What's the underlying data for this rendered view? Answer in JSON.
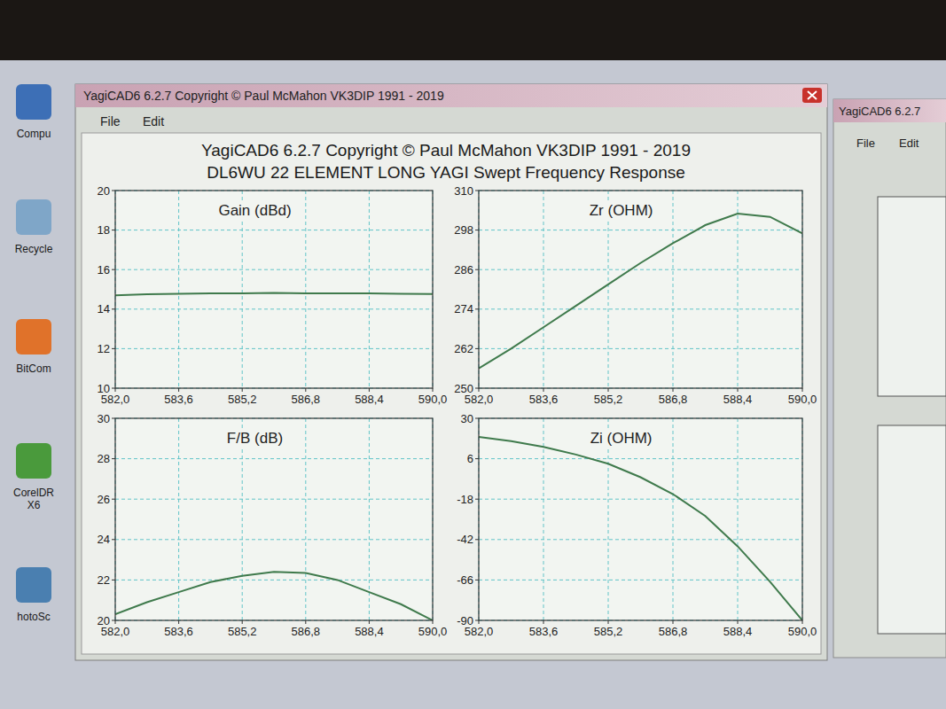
{
  "window": {
    "title": "YagiCAD6 6.2.7  Copyright © Paul McMahon VK3DIP 1991 - 2019",
    "menu": [
      "File",
      "Edit"
    ]
  },
  "heading": {
    "line1": "YagiCAD6 6.2.7  Copyright © Paul McMahon VK3DIP 1991 - 2019",
    "line2": "DL6WU 22 ELEMENT LONG YAGI Swept Frequency Response"
  },
  "background_window": {
    "title": "YagiCAD6 6.2.7",
    "menu": [
      "File",
      "Edit"
    ]
  },
  "desktop_icons": [
    "Compu",
    "Recycle",
    "BitCom",
    "CorelDR X6",
    "hotoSc"
  ],
  "chart_data": [
    {
      "type": "line",
      "title": "Gain (dBd)",
      "x": [
        582,
        582.8,
        583.6,
        584.4,
        585.2,
        586,
        586.8,
        587.6,
        588.4,
        589.2,
        590
      ],
      "values": [
        14.7,
        14.75,
        14.78,
        14.8,
        14.8,
        14.82,
        14.8,
        14.8,
        14.8,
        14.78,
        14.77
      ],
      "color": "#3f7a4c",
      "line_style": "solid",
      "xlim": [
        582,
        590
      ],
      "xticks": [
        {
          "value": 582,
          "label": "582,0"
        },
        {
          "value": 583.6,
          "label": "583,6"
        },
        {
          "value": 585.2,
          "label": "585,2"
        },
        {
          "value": 586.8,
          "label": "586,8"
        },
        {
          "value": 588.4,
          "label": "588,4"
        },
        {
          "value": 590,
          "label": "590,0"
        }
      ],
      "ylim": [
        10,
        20
      ],
      "yticks": [
        10,
        12,
        14,
        16,
        18,
        20
      ],
      "grid": true
    },
    {
      "type": "line",
      "title": "Zr (OHM)",
      "x": [
        582,
        582.8,
        583.6,
        584.4,
        585.2,
        586,
        586.8,
        587.6,
        588.4,
        589.2,
        590
      ],
      "values": [
        256,
        262,
        268.5,
        275,
        281.5,
        288,
        294,
        299.5,
        303,
        302,
        297
      ],
      "color": "#3f7a4c",
      "line_style": "solid",
      "xlim": [
        582,
        590
      ],
      "xticks": [
        {
          "value": 582,
          "label": "582,0"
        },
        {
          "value": 583.6,
          "label": "583,6"
        },
        {
          "value": 585.2,
          "label": "585,2"
        },
        {
          "value": 586.8,
          "label": "586,8"
        },
        {
          "value": 588.4,
          "label": "588,4"
        },
        {
          "value": 590,
          "label": "590,0"
        }
      ],
      "ylim": [
        250,
        310
      ],
      "yticks": [
        250,
        262,
        274,
        286,
        298,
        310
      ],
      "grid": true
    },
    {
      "type": "line",
      "title": "F/B (dB)",
      "x": [
        582,
        582.8,
        583.6,
        584.4,
        585.2,
        586,
        586.8,
        587.6,
        588.4,
        589.2,
        590
      ],
      "values": [
        20.3,
        20.9,
        21.4,
        21.9,
        22.2,
        22.4,
        22.35,
        22.0,
        21.4,
        20.8,
        20.0
      ],
      "color": "#3f7a4c",
      "line_style": "solid",
      "xlim": [
        582,
        590
      ],
      "xticks": [
        {
          "value": 582,
          "label": "582,0"
        },
        {
          "value": 583.6,
          "label": "583,6"
        },
        {
          "value": 585.2,
          "label": "585,2"
        },
        {
          "value": 586.8,
          "label": "586,8"
        },
        {
          "value": 588.4,
          "label": "588,4"
        },
        {
          "value": 590,
          "label": "590,0"
        }
      ],
      "ylim": [
        20,
        30
      ],
      "yticks": [
        20,
        22,
        24,
        26,
        28,
        30
      ],
      "grid": true
    },
    {
      "type": "line",
      "title": "Zi (OHM)",
      "x": [
        582,
        582.8,
        583.6,
        584.4,
        585.2,
        586,
        586.8,
        587.6,
        588.4,
        589.2,
        590
      ],
      "values": [
        19,
        16.5,
        13,
        8.5,
        3,
        -5,
        -15,
        -28,
        -46,
        -67,
        -90
      ],
      "color": "#3f7a4c",
      "line_style": "solid",
      "xlim": [
        582,
        590
      ],
      "xticks": [
        {
          "value": 582,
          "label": "582,0"
        },
        {
          "value": 583.6,
          "label": "583,6"
        },
        {
          "value": 585.2,
          "label": "585,2"
        },
        {
          "value": 586.8,
          "label": "586,8"
        },
        {
          "value": 588.4,
          "label": "588,4"
        },
        {
          "value": 590,
          "label": "590,0"
        }
      ],
      "ylim": [
        -90,
        30
      ],
      "yticks": [
        -90,
        -66,
        -42,
        -18,
        6,
        30
      ],
      "grid": true
    }
  ]
}
